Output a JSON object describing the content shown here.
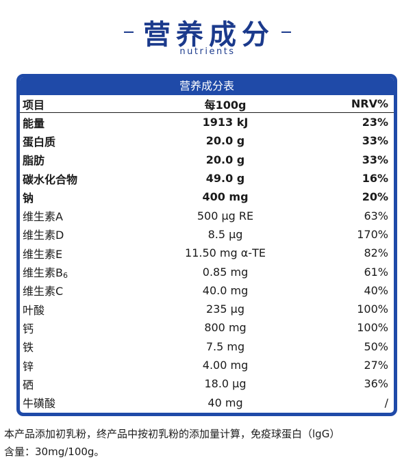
{
  "header": {
    "title": "营养成分",
    "subtitle": "nutrients"
  },
  "table": {
    "title": "营养成分表",
    "columns": [
      "项目",
      "每100g",
      "NRV%"
    ],
    "rows": [
      {
        "name": "能量",
        "sub": "",
        "value": "1913 kJ",
        "nrv": "23%",
        "bold": true
      },
      {
        "name": "蛋白质",
        "sub": "",
        "value": "20.0 g",
        "nrv": "33%",
        "bold": true
      },
      {
        "name": "脂肪",
        "sub": "",
        "value": "20.0 g",
        "nrv": "33%",
        "bold": true
      },
      {
        "name": "碳水化合物",
        "sub": "",
        "value": "49.0 g",
        "nrv": "16%",
        "bold": true
      },
      {
        "name": "钠",
        "sub": "",
        "value": "400 mg",
        "nrv": "20%",
        "bold": true
      },
      {
        "name": "维生素A",
        "sub": "",
        "value": "500 μg RE",
        "nrv": "63%",
        "bold": false
      },
      {
        "name": "维生素D",
        "sub": "",
        "value": "8.5 μg",
        "nrv": "170%",
        "bold": false
      },
      {
        "name": "维生素E",
        "sub": "",
        "value": "11.50 mg α-TE",
        "nrv": "82%",
        "bold": false
      },
      {
        "name": "维生素B",
        "sub": "6",
        "value": "0.85 mg",
        "nrv": "61%",
        "bold": false
      },
      {
        "name": "维生素C",
        "sub": "",
        "value": "40.0 mg",
        "nrv": "40%",
        "bold": false
      },
      {
        "name": "叶酸",
        "sub": "",
        "value": "235 μg",
        "nrv": "100%",
        "bold": false
      },
      {
        "name": "钙",
        "sub": "",
        "value": "800 mg",
        "nrv": "100%",
        "bold": false
      },
      {
        "name": "铁",
        "sub": "",
        "value": "7.5 mg",
        "nrv": "50%",
        "bold": false
      },
      {
        "name": "锌",
        "sub": "",
        "value": "4.00 mg",
        "nrv": "27%",
        "bold": false
      },
      {
        "name": "硒",
        "sub": "",
        "value": "18.0 μg",
        "nrv": "36%",
        "bold": false
      },
      {
        "name": "牛磺酸",
        "sub": "",
        "value": "40 mg",
        "nrv": "/",
        "bold": false
      }
    ]
  },
  "footnote": {
    "line1": "本产品添加初乳粉，终产品中按初乳粉的添加量计算，免疫球蛋白（lgG）",
    "line2": "含量：30mg/100g。"
  },
  "colors": {
    "brand_blue": "#1f4aa8",
    "title_blue": "#1b3a8c"
  }
}
